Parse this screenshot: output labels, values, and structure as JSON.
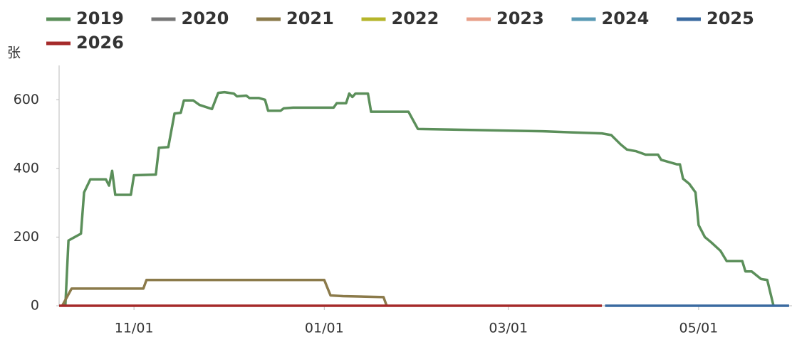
{
  "chart_data": {
    "type": "line",
    "y_label": "张",
    "ylim": [
      0,
      700
    ],
    "yticks": [
      0,
      200,
      400,
      600
    ],
    "xticks": [
      "11/01",
      "01/01",
      "03/01",
      "05/01"
    ],
    "series": [
      {
        "name": "2019",
        "color": "#5b8f5a",
        "x": [
          "10/10",
          "10/11",
          "10/13",
          "10/15",
          "10/16",
          "10/18",
          "10/23",
          "10/24",
          "10/25",
          "10/26",
          "10/31",
          "11/01",
          "11/08",
          "11/09",
          "11/12",
          "11/14",
          "11/16",
          "11/17",
          "11/20",
          "11/22",
          "11/26",
          "11/28",
          "11/30",
          "12/03",
          "12/04",
          "12/07",
          "12/08",
          "12/11",
          "12/13",
          "12/14",
          "12/18",
          "12/19",
          "12/22",
          "01/04",
          "01/05",
          "01/08",
          "01/09",
          "01/10",
          "01/11",
          "01/15",
          "01/16",
          "01/28",
          "01/31",
          "02/17",
          "03/01",
          "03/13",
          "03/21",
          "03/31",
          "04/03",
          "04/06",
          "04/08",
          "04/11",
          "04/14",
          "04/18",
          "04/19",
          "04/24",
          "04/25",
          "04/26",
          "04/28",
          "04/30",
          "05/01",
          "05/03",
          "05/05",
          "05/08",
          "05/10",
          "05/15",
          "05/16",
          "05/18",
          "05/21",
          "05/23",
          "05/25"
        ],
        "values": [
          0,
          190,
          200,
          210,
          330,
          368,
          368,
          350,
          393,
          323,
          323,
          380,
          382,
          460,
          462,
          560,
          562,
          598,
          598,
          585,
          573,
          620,
          622,
          618,
          610,
          612,
          605,
          605,
          600,
          568,
          568,
          575,
          577,
          577,
          590,
          590,
          618,
          608,
          618,
          618,
          565,
          565,
          515,
          512,
          510,
          508,
          505,
          502,
          497,
          470,
          455,
          450,
          440,
          440,
          425,
          412,
          412,
          370,
          355,
          330,
          235,
          200,
          185,
          160,
          130,
          130,
          100,
          100,
          78,
          75,
          0
        ]
      },
      {
        "name": "2020",
        "color": "#777777",
        "x": [],
        "values": []
      },
      {
        "name": "2021",
        "color": "#8b7a4a",
        "x": [
          "10/09",
          "10/12",
          "11/04",
          "11/05",
          "01/01",
          "01/03",
          "01/07",
          "01/20",
          "01/21"
        ],
        "values": [
          0,
          50,
          50,
          75,
          75,
          30,
          28,
          25,
          0
        ]
      },
      {
        "name": "2022",
        "color": "#b5b52a",
        "x": [],
        "values": []
      },
      {
        "name": "2023",
        "color": "#e8a08a",
        "x": [],
        "values": []
      },
      {
        "name": "2024",
        "color": "#5a9ab5",
        "x": [],
        "values": []
      },
      {
        "name": "2025",
        "color": "#3a6aa0",
        "x": [
          "04/01",
          "05/30"
        ],
        "values": [
          0,
          0
        ]
      },
      {
        "name": "2026",
        "color": "#a52a2a",
        "x": [
          "10/08",
          "03/31"
        ],
        "values": [
          0,
          0
        ]
      }
    ]
  }
}
